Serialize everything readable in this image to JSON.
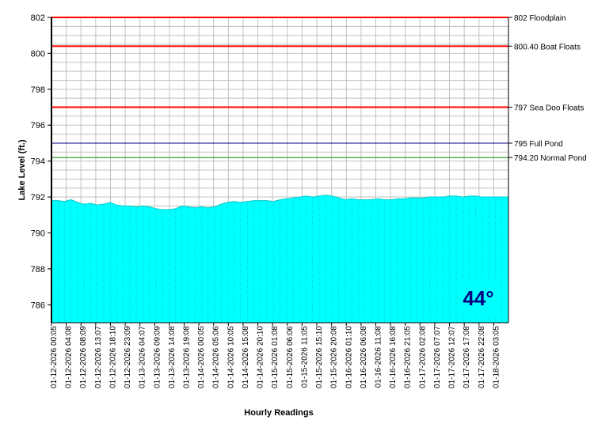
{
  "chart_data": {
    "type": "area",
    "xlabel": "Hourly Readings",
    "ylabel": "Lake Level (ft.)",
    "ylim": [
      785,
      802
    ],
    "yticks": [
      786,
      788,
      790,
      792,
      794,
      796,
      798,
      800,
      802
    ],
    "grid": true,
    "series": [
      {
        "values": [
          791.8,
          791.8,
          791.75,
          791.85,
          791.7,
          791.6,
          791.65,
          791.55,
          791.6,
          791.7,
          791.55,
          791.5,
          791.5,
          791.45,
          791.5,
          791.45,
          791.35,
          791.3,
          791.3,
          791.35,
          791.5,
          791.45,
          791.4,
          791.45,
          791.4,
          791.45,
          791.6,
          791.7,
          791.75,
          791.7,
          791.75,
          791.8,
          791.8,
          791.8,
          791.75,
          791.85,
          791.9,
          791.95,
          792.0,
          792.05,
          792.0,
          792.05,
          792.1,
          792.05,
          791.95,
          791.85,
          791.9,
          791.85,
          791.85,
          791.85,
          791.9,
          791.85,
          791.85,
          791.9,
          791.9,
          791.95,
          791.95,
          791.95,
          792.0,
          792.0,
          792.0,
          792.05,
          792.05,
          792.0,
          792.05,
          792.05,
          792.0,
          792.0,
          792.0,
          792.0,
          792.0
        ]
      }
    ],
    "x_tick_labels": [
      "01-12-2026 00:05",
      "01-12-2026 04:08",
      "01-12-2026 08:09",
      "01-12-2026 13:07",
      "01-12-2026 18:10",
      "01-12-2026 23:09",
      "01-13-2026 04:07",
      "01-13-2026 09:09",
      "01-13-2026 14:08",
      "01-13-2026 19:08",
      "01-14-2026 00:05",
      "01-14-2026 05:06",
      "01-14-2026 10:05",
      "01-14-2026 15:08",
      "01-14-2026 20:10",
      "01-15-2026 01:08",
      "01-15-2026 06:06",
      "01-15-2026 11:05",
      "01-15-2026 15:10",
      "01-15-2026 20:08",
      "01-16-2026 01:10",
      "01-16-2026 06:08",
      "01-16-2026 11:08",
      "01-16-2026 16:08",
      "01-16-2026 21:05",
      "01-17-2026 02:08",
      "01-17-2026 07:07",
      "01-17-2026 12:07",
      "01-17-2026 17:08",
      "01-17-2026 22:08",
      "01-18-2026 03:05"
    ],
    "reference_lines": [
      {
        "label": "802 Floodplain",
        "value": 802,
        "color": "#ff0000"
      },
      {
        "label": "800.40 Boat Floats",
        "value": 800.4,
        "color": "#ff0000"
      },
      {
        "label": "797 Sea Doo Floats",
        "value": 797,
        "color": "#ff0000"
      },
      {
        "label": "795 Full Pond",
        "value": 795,
        "color": "#000080"
      },
      {
        "label": "794.20 Normal Pond",
        "value": 794.2,
        "color": "#008000"
      }
    ],
    "fill_color": "#00ffff",
    "temperature": {
      "text": "44°",
      "background": "#00ffff",
      "color": "#000080"
    }
  }
}
